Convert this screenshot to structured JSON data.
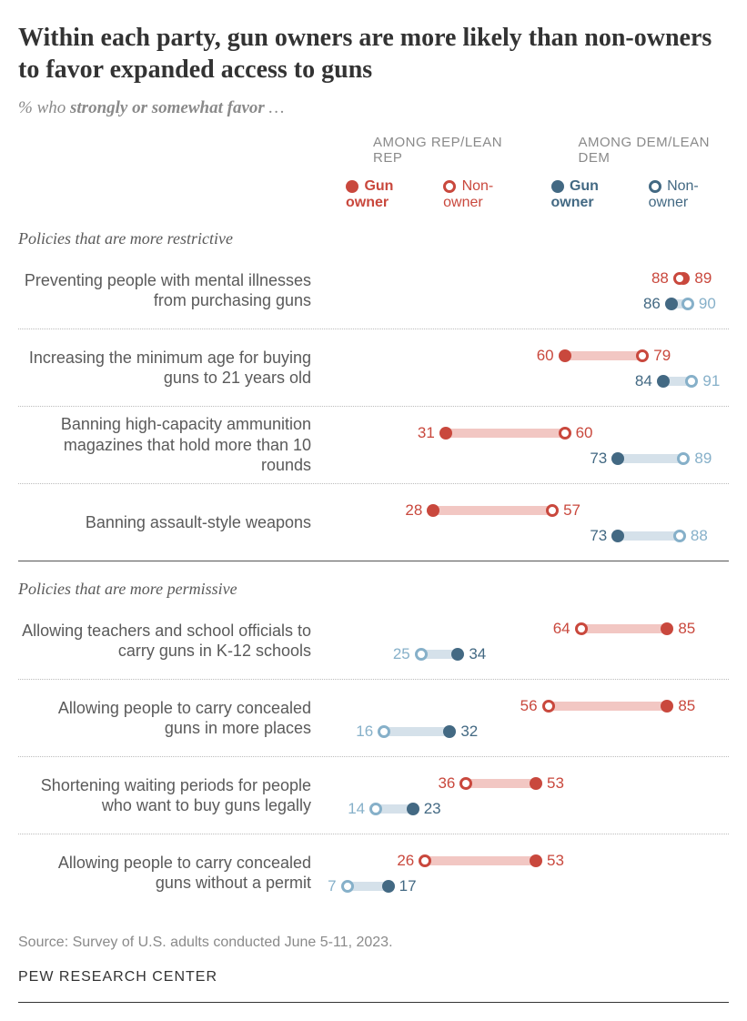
{
  "title": "Within each party, gun owners are more likely than non-owners to favor expanded access to guns",
  "subtitle_prefix": "% who ",
  "subtitle_bold": "strongly or somewhat favor",
  "subtitle_suffix": " …",
  "legend": {
    "rep_header": "AMONG REP/LEAN REP",
    "dem_header": "AMONG DEM/LEAN DEM",
    "owner": "Gun owner",
    "nonowner": "Non-owner"
  },
  "scale": {
    "min": 0,
    "max": 100
  },
  "colors": {
    "rep_solid": "#c9483d",
    "rep_open_border": "#c9483d",
    "rep_bar": "#f2c7c3",
    "dem_solid": "#436983",
    "dem_open_border": "#86b0c9",
    "dem_bar": "#d5e1ea",
    "rep_label": "#c9483d",
    "dem_solid_label": "#436983",
    "dem_open_label": "#86b0c9"
  },
  "sections": [
    {
      "header": "Policies that are more restrictive",
      "rows": [
        {
          "label": "Preventing people with mental illnesses from purchasing guns",
          "rep": {
            "owner": 89,
            "nonowner": 88,
            "owner_side": "right",
            "nonowner_side": "left"
          },
          "dem": {
            "owner": 86,
            "nonowner": 90,
            "owner_side": "left",
            "nonowner_side": "right"
          }
        },
        {
          "label": "Increasing the minimum age for buying guns to 21 years old",
          "rep": {
            "owner": 60,
            "nonowner": 79,
            "owner_side": "left",
            "nonowner_side": "right"
          },
          "dem": {
            "owner": 84,
            "nonowner": 91,
            "owner_side": "left",
            "nonowner_side": "right"
          }
        },
        {
          "label": "Banning high-capacity ammunition magazines that hold more than 10 rounds",
          "rep": {
            "owner": 31,
            "nonowner": 60,
            "owner_side": "left",
            "nonowner_side": "right"
          },
          "dem": {
            "owner": 73,
            "nonowner": 89,
            "owner_side": "left",
            "nonowner_side": "right"
          }
        },
        {
          "label": "Banning assault-style weapons",
          "rep": {
            "owner": 28,
            "nonowner": 57,
            "owner_side": "left",
            "nonowner_side": "right"
          },
          "dem": {
            "owner": 73,
            "nonowner": 88,
            "owner_side": "left",
            "nonowner_side": "right"
          }
        }
      ]
    },
    {
      "header": "Policies that are more permissive",
      "rows": [
        {
          "label": "Allowing teachers and school officials to carry guns in K-12 schools",
          "rep": {
            "owner": 85,
            "nonowner": 64,
            "owner_side": "right",
            "nonowner_side": "left"
          },
          "dem": {
            "owner": 34,
            "nonowner": 25,
            "owner_side": "right",
            "nonowner_side": "left"
          }
        },
        {
          "label": "Allowing people to carry concealed guns in more places",
          "rep": {
            "owner": 85,
            "nonowner": 56,
            "owner_side": "right",
            "nonowner_side": "left"
          },
          "dem": {
            "owner": 32,
            "nonowner": 16,
            "owner_side": "right",
            "nonowner_side": "left"
          }
        },
        {
          "label": "Shortening waiting periods for people who want to buy guns legally",
          "rep": {
            "owner": 53,
            "nonowner": 36,
            "owner_side": "right",
            "nonowner_side": "left"
          },
          "dem": {
            "owner": 23,
            "nonowner": 14,
            "owner_side": "right",
            "nonowner_side": "left"
          }
        },
        {
          "label": "Allowing people to carry concealed guns without a permit",
          "rep": {
            "owner": 53,
            "nonowner": 26,
            "owner_side": "right",
            "nonowner_side": "left"
          },
          "dem": {
            "owner": 17,
            "nonowner": 7,
            "owner_side": "right",
            "nonowner_side": "left"
          }
        }
      ]
    }
  ],
  "source": "Source: Survey of U.S. adults conducted June 5-11, 2023.",
  "footer": "PEW RESEARCH CENTER"
}
